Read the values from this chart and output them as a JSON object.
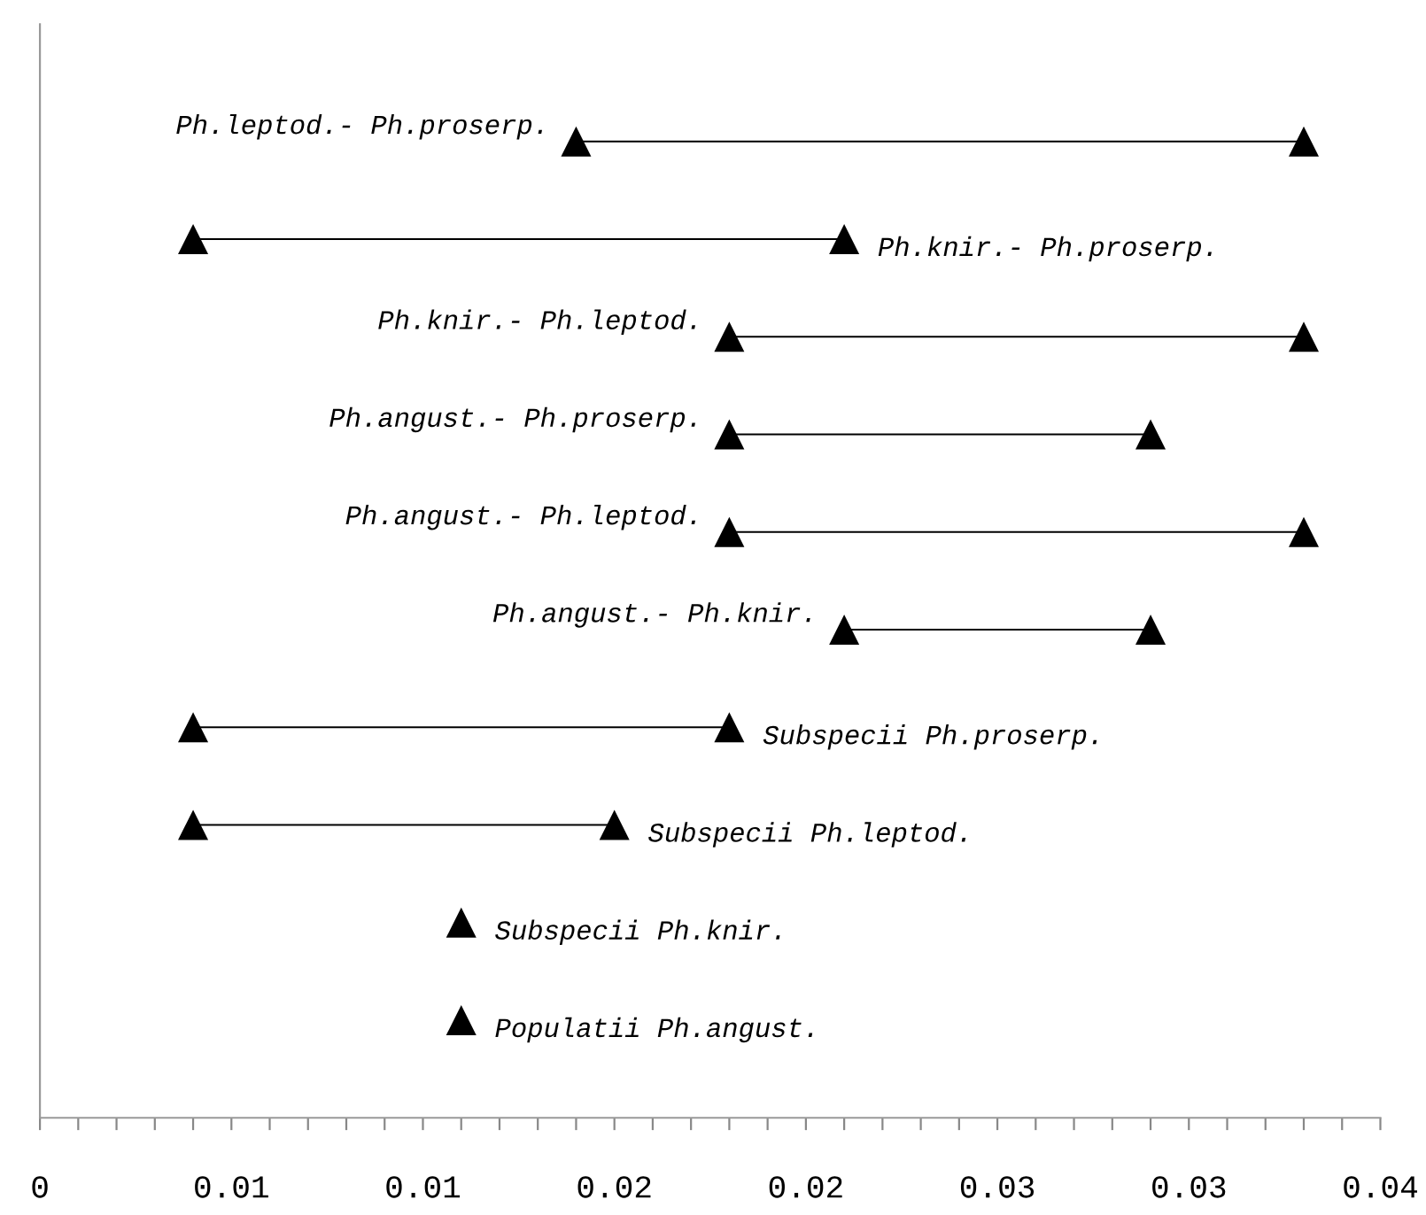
{
  "chart_data": {
    "type": "bar",
    "orientation": "horizontal",
    "legend": false,
    "categories": [
      "Ph.leptod.- Ph.proserp.",
      "Ph.knir.- Ph.proserp.",
      "Ph.knir.- Ph.leptod.",
      "Ph.angust.- Ph.proserp.",
      "Ph.angust.- Ph.leptod.",
      "Ph.angust.- Ph.knir.",
      "Subspecii Ph.proserp.",
      "Subspecii Ph.leptod.",
      "Subspecii Ph.knir.",
      "Populatii Ph.angust."
    ],
    "series": [
      {
        "color": "#000000",
        "base": [
          0.014,
          0.004,
          0.018,
          0.018,
          0.018,
          0.021,
          0.004,
          0.004,
          null,
          null
        ],
        "values": [
          0.019,
          0.017,
          0.015,
          0.011,
          0.015,
          0.008,
          0.014,
          0.011,
          null,
          null
        ]
      },
      {
        "type": "scatter",
        "marker": "triangle",
        "color": "#000000",
        "values": [
          0.014,
          0.004,
          0.018,
          0.018,
          0.018,
          0.021,
          0.004,
          0.004,
          0.011,
          0.011
        ]
      },
      {
        "type": "scatter",
        "marker": "triangle",
        "color": "#000000",
        "values": [
          0.033,
          0.021,
          0.033,
          0.029,
          0.033,
          0.029,
          0.018,
          0.015,
          null,
          null
        ]
      }
    ],
    "xlim": [
      0,
      0.035
    ],
    "xticks": [
      0,
      {
        "value": 0.001,
        "label": null
      },
      {
        "value": 0.002,
        "label": null
      },
      {
        "value": 0.003,
        "label": null
      },
      {
        "value": 0.004,
        "label": null
      },
      {
        "value": 0.005,
        "label": "0.01"
      },
      {
        "value": 0.006,
        "label": null
      },
      {
        "value": 0.007,
        "label": null
      },
      {
        "value": 0.008,
        "label": null
      },
      {
        "value": 0.009,
        "label": null
      },
      0.01,
      {
        "value": 0.011,
        "label": null
      },
      {
        "value": 0.012,
        "label": null
      },
      {
        "value": 0.013,
        "label": null
      },
      {
        "value": 0.014,
        "label": null
      },
      {
        "value": 0.015,
        "label": "0.02"
      },
      {
        "value": 0.016,
        "label": null
      },
      {
        "value": 0.017,
        "label": null
      },
      {
        "value": 0.018,
        "label": null
      },
      {
        "value": 0.019,
        "label": null
      },
      0.02,
      {
        "value": 0.021,
        "label": null
      },
      {
        "value": 0.022,
        "label": null
      },
      {
        "value": 0.023,
        "label": null
      },
      {
        "value": 0.024,
        "label": null
      },
      {
        "value": 0.025,
        "label": "0.03"
      },
      {
        "value": 0.026,
        "label": null
      },
      {
        "value": 0.027,
        "label": null
      },
      {
        "value": 0.028,
        "label": null
      },
      {
        "value": 0.029,
        "label": null
      },
      0.03,
      {
        "value": 0.031,
        "label": null
      },
      {
        "value": 0.032,
        "label": null
      },
      {
        "value": 0.033,
        "label": null
      },
      {
        "value": 0.034,
        "label": null
      },
      {
        "value": 0.035,
        "label": "0.04"
      }
    ],
    "tick_labels": "x",
    "grid": false
  }
}
